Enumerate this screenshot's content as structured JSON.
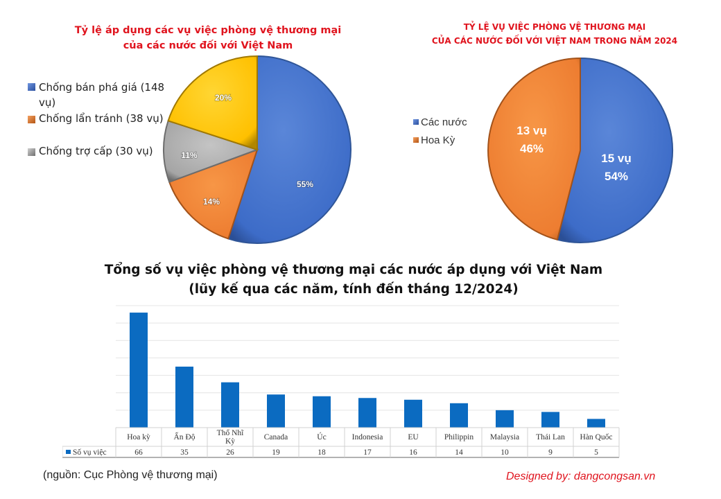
{
  "chart_data": [
    {
      "type": "pie",
      "title": "Tỷ lệ áp dụng các vụ việc phòng vệ thương mại của các nước đối với Việt Nam",
      "title_lines": [
        "Tỷ lệ áp dụng các vụ việc phòng vệ thương mại",
        "của các nước đối với Việt Nam"
      ],
      "legend_position": "left",
      "legend": [
        {
          "label": "Chống bán phá giá (148 vụ)",
          "label_lines": [
            "Chống bán phá giá (148",
            "vụ)"
          ],
          "color": "#3f6fd0"
        },
        {
          "label": "Chống lẩn tránh (38 vụ)",
          "color": "#ed7d31"
        },
        {
          "label": "Chống trợ cấp (30 vụ)",
          "color": "#a5a5a5"
        }
      ],
      "slices": [
        {
          "label": "Chống bán phá giá",
          "cases": 148,
          "value": 55,
          "display": "55%",
          "color": "#4472c4"
        },
        {
          "label": "Chống lẩn tránh",
          "cases": 38,
          "value": 14,
          "display": "14%",
          "color": "#ed7d31"
        },
        {
          "label": "Chống trợ cấp",
          "cases": 30,
          "value": 11,
          "display": "11%",
          "color": "#a5a5a5"
        },
        {
          "label": "",
          "value": 20,
          "display": "20%",
          "color": "#ffc000"
        }
      ]
    },
    {
      "type": "pie",
      "title": "TỶ LỆ VỤ VIỆC PHÒNG VỆ THƯƠNG MẠI CỦA CÁC NƯỚC ĐỐI VỚI VIỆT NAM TRONG NĂM 2024",
      "title_lines": [
        "TỶ LỆ VỤ VIỆC PHÒNG VỆ THƯƠNG MẠI",
        "CỦA CÁC NƯỚC ĐỐI VỚI VIỆT NAM TRONG NĂM 2024"
      ],
      "legend_position": "left",
      "legend": [
        {
          "label": "Các nước",
          "color": "#4472c4"
        },
        {
          "label": "Hoa Kỳ",
          "color": "#ed7d31"
        }
      ],
      "slices": [
        {
          "label": "Các nước",
          "cases": 15,
          "value": 54,
          "display_line1": "15 vụ",
          "display_line2": "54%",
          "color": "#4472c4"
        },
        {
          "label": "Hoa Kỳ",
          "cases": 13,
          "value": 46,
          "display_line1": "13 vụ",
          "display_line2": "46%",
          "color": "#ed7d31"
        }
      ]
    },
    {
      "type": "bar",
      "title": "Tổng số vụ việc phòng vệ thương mại các nước áp dụng với Việt Nam",
      "subtitle": "(lũy kế qua các năm, tính đến tháng 12/2024)",
      "categories": [
        "Hoa kỳ",
        "Ấn Độ",
        "Thổ Nhĩ Kỳ",
        "Canada",
        "Úc",
        "Indonesia",
        "EU",
        "Philippin",
        "Malaysia",
        "Thái Lan",
        "Hàn Quốc"
      ],
      "category_lines": [
        [
          "Hoa kỳ"
        ],
        [
          "Ấn Độ"
        ],
        [
          "Thổ Nhĩ",
          "Kỳ"
        ],
        [
          "Canada"
        ],
        [
          "Úc"
        ],
        [
          "Indonesia"
        ],
        [
          "EU"
        ],
        [
          "Philippin"
        ],
        [
          "Malaysia"
        ],
        [
          "Thái Lan"
        ],
        [
          "Hàn Quốc"
        ]
      ],
      "series": [
        {
          "name": "Số vụ việc",
          "values": [
            66,
            35,
            26,
            19,
            18,
            17,
            16,
            14,
            10,
            9,
            5
          ],
          "color": "#0b6bc1"
        }
      ],
      "xlabel": "",
      "ylabel": "",
      "ylim": [
        0,
        70
      ],
      "grid": true,
      "gridline_step": 10,
      "data_table": true
    }
  ],
  "footer": {
    "source": "(nguồn: Cục Phòng vệ thương mại)",
    "designed_by": "Designed by: dangcongsan.vn"
  }
}
